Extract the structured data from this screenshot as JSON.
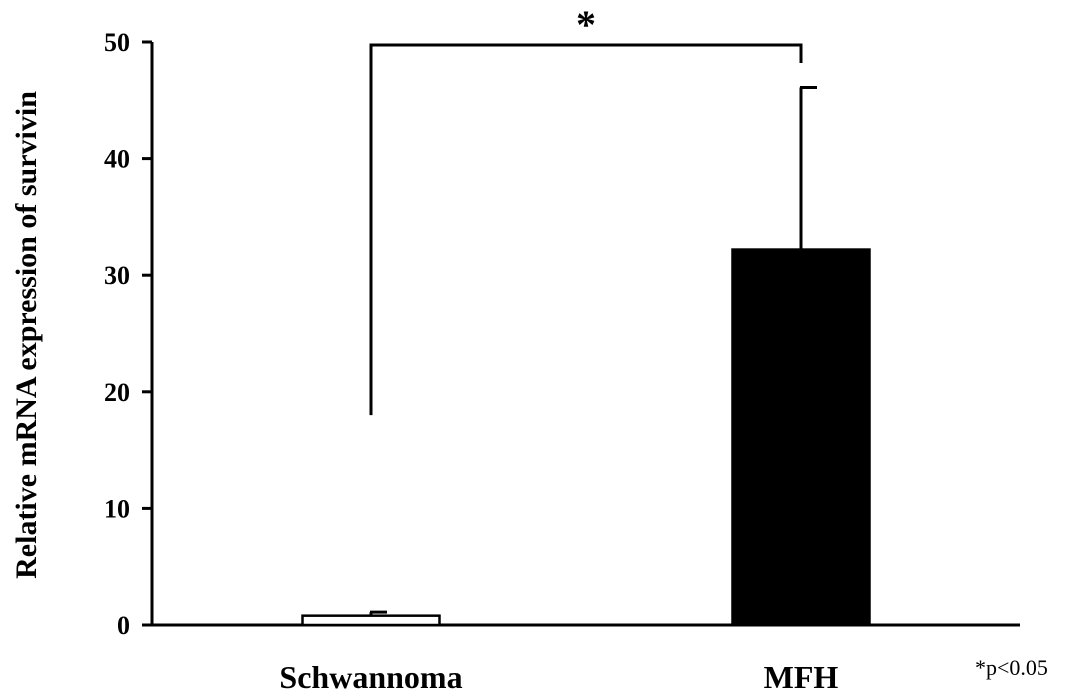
{
  "chart_data": {
    "type": "bar",
    "categories": [
      "Schwannoma",
      "MFH"
    ],
    "values": [
      0.8,
      32.2
    ],
    "error_upper": [
      1.1,
      46.1
    ],
    "bar_colors": [
      "#ffffff",
      "#000000"
    ],
    "ylabel": "Relative mRNA expression of survivin",
    "xlabel": "",
    "ylim": [
      0,
      50
    ],
    "yticks": [
      0,
      10,
      20,
      30,
      40,
      50
    ],
    "significance": {
      "marker": "*",
      "bracket_left_y": 18,
      "bracket_right_y": 48.2,
      "bracket_top_y": 50
    },
    "footnote": "*p<0.05",
    "grid": false,
    "legend": "none"
  }
}
